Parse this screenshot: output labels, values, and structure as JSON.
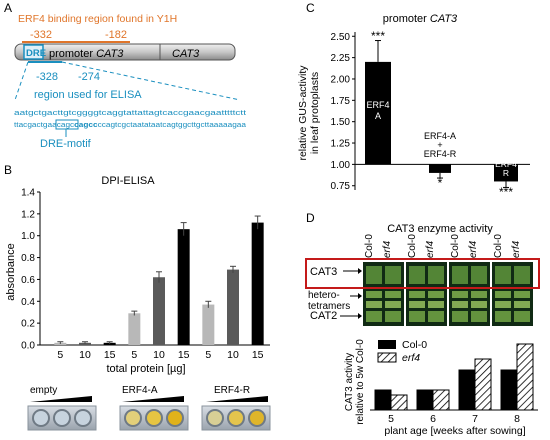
{
  "colors": {
    "orange": "#e0752a",
    "teal": "#1a8fbf",
    "red_box": "#c41a1a",
    "black": "#000000",
    "gray_dark": "#5a5a5a",
    "gray_mid": "#7a7a7a",
    "gray_light": "#b8b8b8"
  },
  "panel_a": {
    "letter": "A",
    "erf4_title": "ERF4 binding region found in Y1H",
    "pos_left_orange": "-332",
    "pos_right_orange": "-182",
    "dre_label": "DRE",
    "promoter_prefix": "promoter ",
    "promoter_gene": "CAT3",
    "gene_box": "CAT3",
    "pos_left_teal": "-328",
    "pos_right_teal": "-274",
    "elisa_region": "region used for ELISA",
    "seq_top": "aatgctgacttgtcggggtcaggtattattagtcaccgaacgaatttttctt",
    "seq_bottom_pre": "ttacgactgaacagc",
    "seq_motif": "cagcc",
    "seq_bottom_post": "ccagtcgctaatataatcagtggcttgcttaaaaagaa",
    "motif_label": "DRE-motif"
  },
  "panel_b": {
    "letter": "B",
    "title": "DPI-ELISA",
    "legend_empty": "empty",
    "legend_a": "ERF4-A",
    "legend_r": "ERF4-R"
  },
  "panel_c": {
    "letter": "C",
    "title_prefix": "promoter ",
    "title_gene": "CAT3",
    "bar_label_a1": "ERF4",
    "bar_label_a2": "A",
    "bar_label_mid1": "ERF4-A",
    "bar_label_mid2": "+",
    "bar_label_mid3": "ERF4-R",
    "bar_label_r1": "ERF4",
    "bar_label_r2": "R",
    "star_a": "***",
    "star_mid": "*",
    "star_r": "***"
  },
  "panel_d": {
    "letter": "D",
    "title": "CAT3 enzyme activity",
    "lane_col0": "Col-0",
    "lane_erf4": "erf4",
    "band_cat3": "CAT3",
    "band_hetero1": "hetero-",
    "band_hetero2": "tetramers",
    "band_cat2": "CAT2",
    "legend_col0": "Col-0",
    "legend_erf4": "erf4"
  },
  "chart_data": [
    {
      "type": "bar",
      "title": "DPI-ELISA",
      "xlabel": "total protein [µg]",
      "ylabel": "absorbance",
      "categories": [
        "5",
        "10",
        "15",
        "5",
        "10",
        "15",
        "5",
        "10",
        "15",
        "5",
        "10",
        "15"
      ],
      "groups": [
        "",
        "",
        "",
        "",
        "",
        "",
        "",
        "",
        "",
        "",
        "",
        ""
      ],
      "values": [
        0.02,
        0.02,
        0.02,
        0.29,
        0.62,
        1.06,
        0.37,
        0.69,
        1.12,
        0,
        0,
        0
      ],
      "errors": [
        0.01,
        0.01,
        0.01,
        0.02,
        0.05,
        0.06,
        0.03,
        0.03,
        0.06,
        0,
        0,
        0
      ],
      "display_categories": [
        "5",
        "10",
        "15",
        "5",
        "10",
        "15",
        "5",
        "10",
        "15"
      ],
      "display_values": [
        0.02,
        0.02,
        0.02,
        0.29,
        0.62,
        1.06,
        0.37,
        0.69,
        1.12
      ],
      "display_errors": [
        0.01,
        0.01,
        0.01,
        0.02,
        0.05,
        0.06,
        0.03,
        0.03,
        0.06
      ],
      "bar_colors": [
        "#b8b8b8",
        "#5a5a5a",
        "#000000",
        "#b8b8b8",
        "#5a5a5a",
        "#000000",
        "#b8b8b8",
        "#5a5a5a",
        "#000000"
      ],
      "yticks": [
        "0.0",
        "0.2",
        "0.4",
        "0.6",
        "0.8",
        "1.0",
        "1.2",
        "1.4"
      ],
      "ylim": [
        0,
        1.4
      ]
    },
    {
      "type": "bar",
      "title": "promoter CAT3",
      "ylabel_line1": "relative GUS-activity",
      "ylabel_line2": "in leaf protoplasts",
      "categories": [
        "ERF4-A",
        "ERF4-A + ERF4-R",
        "ERF4-R"
      ],
      "values": [
        2.2,
        0.9,
        0.8
      ],
      "errors": [
        0.25,
        0.06,
        0.07
      ],
      "baseline": 1.0,
      "yticks": [
        "0.75",
        "1.00",
        "1.25",
        "1.50",
        "1.75",
        "2.00",
        "2.25",
        "2.50"
      ],
      "ylim": [
        0.7,
        2.55
      ]
    },
    {
      "type": "bar",
      "title": "CAT3 enzyme activity",
      "xlabel": "plant age [weeks after sowing]",
      "ylabel_line1": "CAT3 activity",
      "ylabel_line2": "relative to 5w Col-0",
      "categories": [
        "5",
        "6",
        "7",
        "8"
      ],
      "series": [
        {
          "name": "Col-0",
          "values": [
            1.0,
            1.0,
            2.0,
            2.0
          ]
        },
        {
          "name": "erf4",
          "values": [
            0.75,
            1.0,
            2.55,
            3.3
          ]
        }
      ],
      "ylim": [
        0,
        3.5
      ]
    }
  ]
}
